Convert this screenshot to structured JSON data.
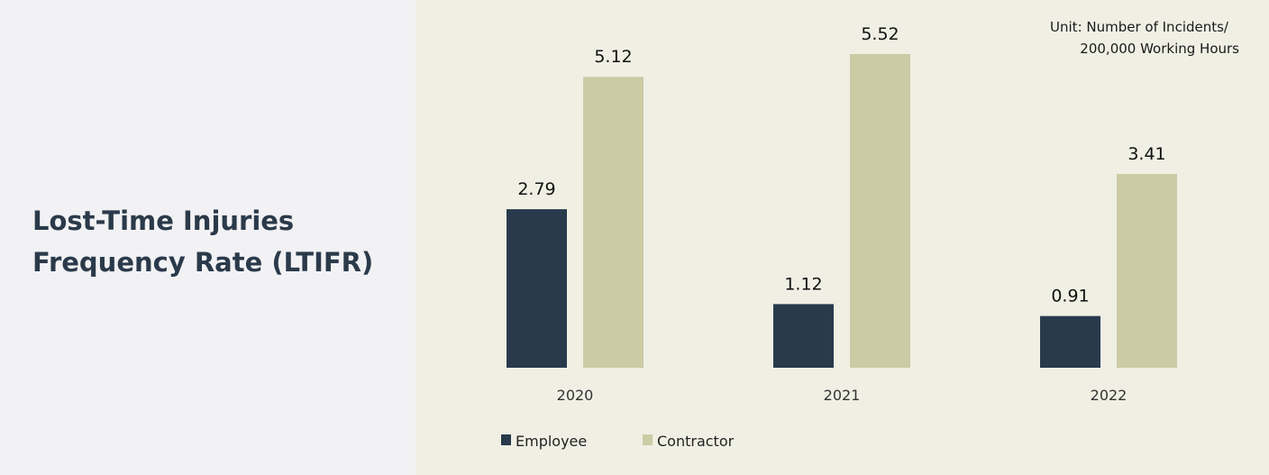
{
  "title": {
    "line1": "Lost-Time Injuries",
    "line2": "Frequency Rate (LTIFR)"
  },
  "unit_note": {
    "line1": "Unit: Number of Incidents/",
    "line2": "200,000 Working Hours"
  },
  "colors": {
    "employee": "#283a4c",
    "contractor": "#cbcba4"
  },
  "chart_data": {
    "type": "bar",
    "categories": [
      "2020",
      "2021",
      "2022"
    ],
    "series": [
      {
        "name": "Employee",
        "values": [
          2.79,
          1.12,
          0.91
        ],
        "labels": [
          "2.79",
          "1.12",
          "0.91"
        ]
      },
      {
        "name": "Contractor",
        "values": [
          5.12,
          5.52,
          3.41
        ],
        "labels": [
          "5.12",
          "5.52",
          "3.41"
        ]
      }
    ],
    "ylim": [
      0,
      5.52
    ],
    "legend": "bottom-left",
    "grid": false
  }
}
